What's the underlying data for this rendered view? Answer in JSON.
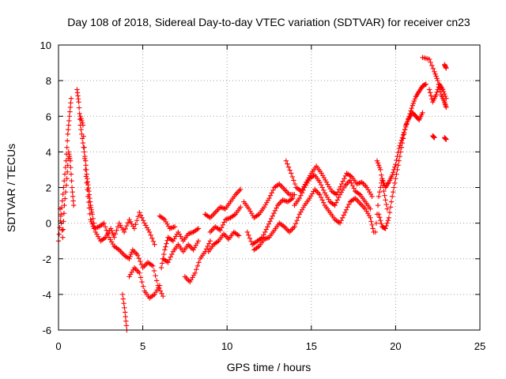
{
  "chart_data": {
    "type": "scatter",
    "title": "Day 108 of 2018, Sidereal Day-to-day VTEC variation (SDTVAR) for receiver cn23",
    "xlabel": "GPS time / hours",
    "ylabel": "SDTVAR / TECUs",
    "xlim": [
      0,
      25
    ],
    "ylim": [
      -6,
      10
    ],
    "xticks": [
      0,
      5,
      10,
      15,
      20,
      25
    ],
    "yticks": [
      -6,
      -4,
      -2,
      0,
      2,
      4,
      6,
      8,
      10
    ],
    "xtick_labels": [
      "0",
      "5",
      "10",
      "15",
      "20",
      "25"
    ],
    "ytick_labels": [
      "-6",
      "-4",
      "-2",
      "0",
      "2",
      "4",
      "6",
      "8",
      "10"
    ],
    "grid": true,
    "marker": "+",
    "series": [
      {
        "name": "SDTVAR",
        "color": "#ff0000",
        "tracks": [
          [
            [
              0.0,
              -1.0
            ],
            [
              0.15,
              0.5
            ],
            [
              0.3,
              2.0
            ],
            [
              0.45,
              3.5
            ],
            [
              0.55,
              5.0
            ],
            [
              0.65,
              6.0
            ],
            [
              0.75,
              7.0
            ]
          ],
          [
            [
              0.1,
              0.8
            ],
            [
              0.25,
              -0.8
            ],
            [
              0.35,
              1.0
            ],
            [
              0.5,
              2.5
            ],
            [
              0.6,
              4.0
            ],
            [
              0.7,
              3.5
            ],
            [
              0.8,
              2.0
            ],
            [
              0.9,
              1.0
            ]
          ],
          [
            [
              1.1,
              7.5
            ],
            [
              1.2,
              6.8
            ],
            [
              1.3,
              5.5
            ],
            [
              1.45,
              4.5
            ],
            [
              1.6,
              3.5
            ],
            [
              1.7,
              2.5
            ],
            [
              1.8,
              1.8
            ],
            [
              1.9,
              1.0
            ],
            [
              2.0,
              0.5
            ],
            [
              2.2,
              -0.5
            ],
            [
              2.5,
              -1.0
            ],
            [
              2.8,
              -0.8
            ],
            [
              3.1,
              -0.3
            ],
            [
              3.3,
              -0.8
            ],
            [
              3.6,
              0.0
            ],
            [
              3.9,
              -0.5
            ],
            [
              4.2,
              0.2
            ],
            [
              4.5,
              -0.3
            ],
            [
              4.8,
              0.6
            ],
            [
              5.1,
              0.0
            ],
            [
              5.4,
              -0.5
            ],
            [
              5.7,
              -1.2
            ]
          ],
          [
            [
              1.3,
              6.0
            ],
            [
              1.45,
              5.5
            ],
            [
              1.6,
              3.0
            ],
            [
              1.75,
              1.5
            ],
            [
              1.9,
              0.2
            ],
            [
              2.1,
              -0.3
            ],
            [
              2.4,
              -0.2
            ],
            [
              2.7,
              0.0
            ],
            [
              3.0,
              -0.8
            ],
            [
              3.3,
              -1.3
            ],
            [
              3.6,
              -1.5
            ],
            [
              3.9,
              -1.8
            ],
            [
              4.2,
              -2.0
            ],
            [
              4.4,
              -1.5
            ],
            [
              4.7,
              -1.8
            ],
            [
              5.0,
              -2.5
            ],
            [
              5.3,
              -2.2
            ],
            [
              5.6,
              -2.4
            ],
            [
              5.9,
              -3.5
            ],
            [
              6.2,
              -4.1
            ]
          ],
          [
            [
              3.8,
              -4.0
            ],
            [
              3.95,
              -5.0
            ],
            [
              4.05,
              -6.0
            ]
          ],
          [
            [
              4.2,
              -3.0
            ],
            [
              4.5,
              -2.5
            ],
            [
              4.8,
              -2.8
            ],
            [
              5.1,
              -3.8
            ],
            [
              5.4,
              -4.2
            ],
            [
              5.7,
              -4.0
            ],
            [
              6.0,
              -3.5
            ]
          ],
          [
            [
              6.1,
              -2.5
            ],
            [
              6.3,
              -1.5
            ],
            [
              6.5,
              -0.8
            ],
            [
              6.8,
              -1.0
            ],
            [
              7.1,
              -0.5
            ],
            [
              7.4,
              -1.0
            ],
            [
              7.7,
              -0.6
            ],
            [
              8.0,
              -0.5
            ],
            [
              8.3,
              -0.3
            ]
          ],
          [
            [
              6.2,
              -2.0
            ],
            [
              6.5,
              -2.2
            ],
            [
              6.8,
              -1.6
            ],
            [
              7.1,
              -1.2
            ],
            [
              7.4,
              -1.6
            ],
            [
              7.7,
              -1.2
            ],
            [
              8.0,
              -1.5
            ],
            [
              8.3,
              -1.0
            ]
          ],
          [
            [
              6.0,
              0.4
            ],
            [
              6.3,
              0.2
            ],
            [
              6.6,
              -0.3
            ],
            [
              6.9,
              -0.2
            ]
          ],
          [
            [
              7.5,
              -3.0
            ],
            [
              7.8,
              -3.3
            ],
            [
              8.1,
              -2.8
            ],
            [
              8.4,
              -2.0
            ],
            [
              8.7,
              -1.6
            ],
            [
              9.0,
              -1.0
            ]
          ],
          [
            [
              8.7,
              0.5
            ],
            [
              9.0,
              0.3
            ],
            [
              9.3,
              0.6
            ],
            [
              9.6,
              0.9
            ],
            [
              9.9,
              0.8
            ],
            [
              10.2,
              1.2
            ],
            [
              10.5,
              1.6
            ],
            [
              10.8,
              1.9
            ]
          ],
          [
            [
              9.0,
              -0.5
            ],
            [
              9.3,
              -0.2
            ],
            [
              9.6,
              -0.4
            ],
            [
              9.9,
              0.2
            ],
            [
              10.2,
              0.3
            ],
            [
              10.5,
              0.5
            ],
            [
              10.8,
              0.9
            ]
          ],
          [
            [
              8.9,
              -1.6
            ],
            [
              9.2,
              -1.2
            ],
            [
              9.5,
              -1.0
            ],
            [
              9.8,
              -0.6
            ],
            [
              10.1,
              -0.9
            ],
            [
              10.4,
              -0.5
            ],
            [
              10.7,
              -0.7
            ]
          ],
          [
            [
              11.0,
              1.2
            ],
            [
              11.3,
              0.8
            ],
            [
              11.6,
              0.3
            ],
            [
              11.9,
              0.5
            ],
            [
              12.2,
              0.9
            ],
            [
              12.5,
              1.4
            ],
            [
              12.8,
              2.0
            ],
            [
              13.1,
              2.2
            ],
            [
              13.4,
              1.9
            ],
            [
              13.7,
              1.6
            ],
            [
              14.0,
              1.6
            ]
          ],
          [
            [
              11.2,
              -0.5
            ],
            [
              11.5,
              -1.2
            ],
            [
              11.8,
              -1.0
            ],
            [
              12.1,
              -0.8
            ],
            [
              12.4,
              -0.2
            ],
            [
              12.7,
              0.4
            ],
            [
              13.0,
              1.0
            ],
            [
              13.3,
              1.3
            ],
            [
              13.6,
              1.2
            ],
            [
              13.9,
              1.4
            ]
          ],
          [
            [
              11.6,
              -1.5
            ],
            [
              11.9,
              -1.3
            ],
            [
              12.2,
              -0.9
            ],
            [
              12.5,
              -0.8
            ],
            [
              12.8,
              -0.4
            ],
            [
              13.1,
              0.0
            ],
            [
              13.4,
              -0.2
            ],
            [
              13.7,
              -0.5
            ],
            [
              14.0,
              -0.2
            ],
            [
              14.3,
              0.5
            ],
            [
              14.6,
              1.0
            ],
            [
              14.9,
              1.4
            ],
            [
              15.2,
              1.9
            ],
            [
              15.5,
              1.6
            ],
            [
              15.8,
              1.0
            ],
            [
              16.1,
              0.6
            ],
            [
              16.4,
              0.2
            ],
            [
              16.7,
              0.0
            ],
            [
              17.0,
              0.6
            ],
            [
              17.3,
              1.2
            ],
            [
              17.6,
              1.4
            ],
            [
              17.9,
              1.1
            ],
            [
              18.2,
              0.8
            ],
            [
              18.5,
              0.3
            ],
            [
              18.7,
              -0.5
            ]
          ],
          [
            [
              13.5,
              3.5
            ],
            [
              13.8,
              2.8
            ],
            [
              14.1,
              2.0
            ],
            [
              14.4,
              1.8
            ],
            [
              14.7,
              2.3
            ],
            [
              15.0,
              2.8
            ],
            [
              15.3,
              3.2
            ],
            [
              15.6,
              2.8
            ],
            [
              15.9,
              2.3
            ],
            [
              16.2,
              1.8
            ],
            [
              16.5,
              1.6
            ],
            [
              16.8,
              2.2
            ],
            [
              17.1,
              2.8
            ],
            [
              17.4,
              2.6
            ],
            [
              17.7,
              2.2
            ],
            [
              18.0,
              2.3
            ],
            [
              18.3,
              2.0
            ],
            [
              18.6,
              1.5
            ]
          ],
          [
            [
              14.0,
              1.0
            ],
            [
              14.3,
              1.4
            ],
            [
              14.6,
              2.0
            ],
            [
              14.9,
              2.5
            ],
            [
              15.2,
              2.7
            ],
            [
              15.5,
              2.3
            ],
            [
              15.8,
              1.7
            ],
            [
              16.1,
              1.2
            ],
            [
              16.4,
              1.0
            ],
            [
              16.7,
              1.6
            ],
            [
              17.0,
              2.1
            ],
            [
              17.3,
              2.4
            ],
            [
              17.6,
              1.8
            ],
            [
              17.9,
              1.6
            ],
            [
              18.2,
              1.2
            ],
            [
              18.5,
              0.8
            ]
          ],
          [
            [
              18.8,
              -0.5
            ],
            [
              19.0,
              1.5
            ],
            [
              19.2,
              2.5
            ],
            [
              19.4,
              2.0
            ],
            [
              19.6,
              2.3
            ],
            [
              19.8,
              2.7
            ],
            [
              20.0,
              3.3
            ],
            [
              20.2,
              4.2
            ],
            [
              20.4,
              4.8
            ],
            [
              20.6,
              5.4
            ],
            [
              20.8,
              6.0
            ],
            [
              21.0,
              6.6
            ],
            [
              21.2,
              7.1
            ],
            [
              21.4,
              7.4
            ],
            [
              21.6,
              7.7
            ],
            [
              21.8,
              7.8
            ]
          ],
          [
            [
              19.0,
              0.5
            ],
            [
              19.2,
              -0.2
            ],
            [
              19.4,
              -0.3
            ],
            [
              19.6,
              0.3
            ],
            [
              19.8,
              1.5
            ],
            [
              20.0,
              2.5
            ],
            [
              20.2,
              3.5
            ],
            [
              20.4,
              4.5
            ],
            [
              20.6,
              5.5
            ],
            [
              20.8,
              5.9
            ],
            [
              21.0,
              6.2
            ],
            [
              21.2,
              6.0
            ],
            [
              21.4,
              5.8
            ],
            [
              21.6,
              6.2
            ]
          ],
          [
            [
              18.9,
              3.5
            ],
            [
              19.1,
              3.0
            ],
            [
              19.3,
              1.8
            ],
            [
              19.5,
              0.8
            ]
          ],
          [
            [
              21.6,
              9.3
            ],
            [
              22.0,
              9.2
            ],
            [
              22.3,
              8.5
            ],
            [
              22.5,
              8.0
            ],
            [
              22.7,
              7.2
            ],
            [
              22.9,
              6.8
            ],
            [
              23.0,
              6.5
            ]
          ],
          [
            [
              22.0,
              7.5
            ],
            [
              22.2,
              6.8
            ],
            [
              22.4,
              7.2
            ],
            [
              22.6,
              7.8
            ],
            [
              22.8,
              7.5
            ],
            [
              23.0,
              7.0
            ]
          ],
          [
            [
              22.2,
              4.9
            ],
            [
              22.3,
              4.8
            ]
          ],
          [
            [
              22.9,
              4.8
            ],
            [
              23.0,
              4.7
            ]
          ],
          [
            [
              22.9,
              8.9
            ],
            [
              23.0,
              8.7
            ]
          ]
        ]
      }
    ]
  }
}
